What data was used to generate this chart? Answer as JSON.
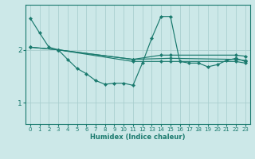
{
  "xlabel": "Humidex (Indice chaleur)",
  "bg_color": "#cce8e8",
  "line_color": "#1a7a6e",
  "grid_color": "#aacfcf",
  "xlim": [
    -0.5,
    23.5
  ],
  "ylim": [
    0.6,
    2.85
  ],
  "yticks": [
    1,
    2
  ],
  "xticks": [
    0,
    1,
    2,
    3,
    4,
    5,
    6,
    7,
    8,
    9,
    10,
    11,
    12,
    13,
    14,
    15,
    16,
    17,
    18,
    19,
    20,
    21,
    22,
    23
  ],
  "line1_x": [
    0,
    1,
    2,
    3,
    4,
    5,
    6,
    7,
    8,
    9,
    10,
    11,
    12,
    13,
    14,
    15,
    16,
    17,
    18,
    19,
    20,
    21,
    22,
    23
  ],
  "line1_y": [
    2.6,
    2.32,
    2.05,
    2.0,
    1.82,
    1.65,
    1.55,
    1.42,
    1.35,
    1.37,
    1.37,
    1.33,
    1.75,
    2.22,
    2.63,
    2.63,
    1.78,
    1.75,
    1.75,
    1.68,
    1.72,
    1.8,
    1.84,
    1.78
  ],
  "line2_x": [
    0,
    3,
    11,
    14,
    15,
    22,
    23
  ],
  "line2_y": [
    2.05,
    2.0,
    1.82,
    1.9,
    1.9,
    1.9,
    1.88
  ],
  "line3_x": [
    0,
    3,
    11,
    14,
    15,
    22,
    23
  ],
  "line3_y": [
    2.05,
    2.0,
    1.78,
    1.78,
    1.78,
    1.78,
    1.75
  ],
  "line4_x": [
    3,
    11,
    15,
    22,
    23
  ],
  "line4_y": [
    2.0,
    1.82,
    1.84,
    1.82,
    1.8
  ]
}
